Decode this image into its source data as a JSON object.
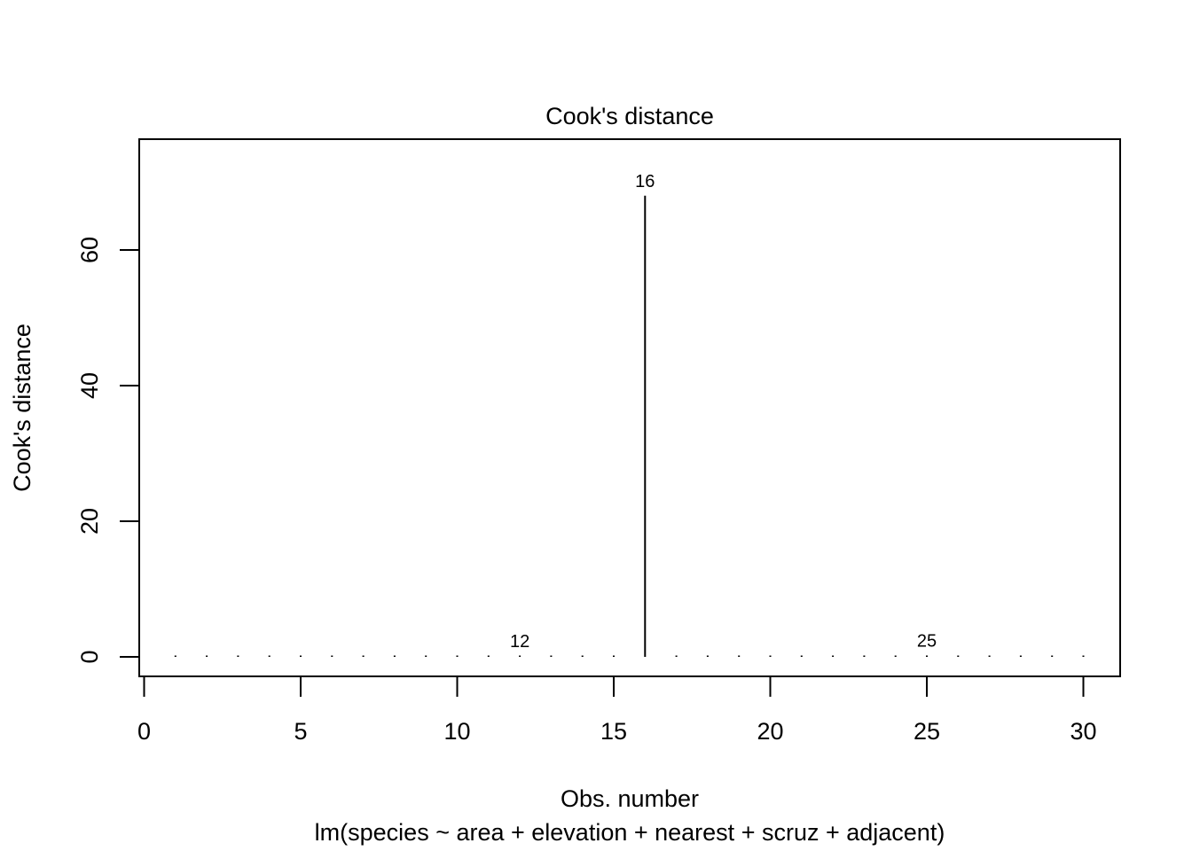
{
  "chart_data": {
    "type": "bar",
    "style": "histogram-spikes",
    "title": "Cook's distance",
    "xlabel": "Obs. number",
    "subtitle": "lm(species ~ area + elevation + nearest + scruz + adjacent)",
    "ylabel": "Cook's distance",
    "xlim": [
      0,
      30
    ],
    "ylim": [
      0,
      70
    ],
    "xticks": [
      0,
      5,
      10,
      15,
      20,
      25,
      30
    ],
    "yticks": [
      0,
      20,
      40,
      60
    ],
    "x": [
      1,
      2,
      3,
      4,
      5,
      6,
      7,
      8,
      9,
      10,
      11,
      12,
      13,
      14,
      15,
      16,
      17,
      18,
      19,
      20,
      21,
      22,
      23,
      24,
      25,
      26,
      27,
      28,
      29,
      30
    ],
    "values": [
      0.02,
      0.02,
      0.02,
      0.02,
      0.02,
      0.02,
      0.02,
      0.02,
      0.02,
      0.02,
      0.02,
      0.1,
      0.02,
      0.02,
      0.1,
      68.0,
      0.02,
      0.02,
      0.2,
      0.02,
      0.02,
      0.02,
      0.2,
      0.05,
      0.2,
      0.02,
      0.02,
      0.02,
      0.02,
      0.02
    ],
    "labeled_points": [
      {
        "x": 12,
        "y": 0.1,
        "label": "12"
      },
      {
        "x": 16,
        "y": 68.0,
        "label": "16"
      },
      {
        "x": 25,
        "y": 0.2,
        "label": "25"
      }
    ],
    "grid": false,
    "legend": "none"
  }
}
